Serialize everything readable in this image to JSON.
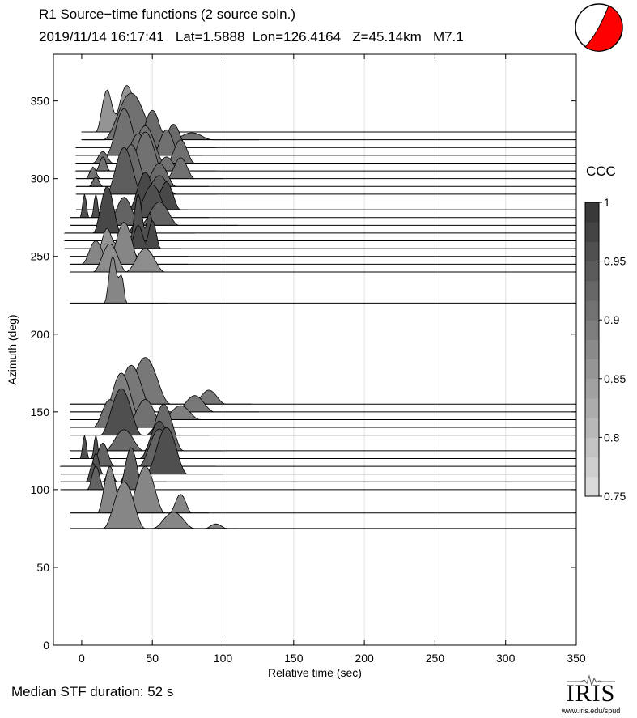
{
  "header": {
    "title": "R1 Source−time functions (2 source soln.)",
    "subtitle": "2019/11/14 16:17:41   Lat=1.5888  Lon=126.4164   Z=45.14km   M7.1"
  },
  "footer": {
    "median": "Median STF duration: 52 s",
    "logo": "IRIS",
    "url": "www.iris.edu/spud"
  },
  "colors": {
    "beachball_fill": "#ff0000",
    "ccc_low": "#e0e0e0",
    "ccc_high": "#333333"
  },
  "chart_data": {
    "type": "area",
    "xlabel": "Relative time (sec)",
    "ylabel": "Azimuth (deg)",
    "xlim": [
      -20,
      350
    ],
    "ylim": [
      0,
      380
    ],
    "xticks": [
      0,
      50,
      100,
      150,
      200,
      250,
      300,
      350
    ],
    "yticks": [
      0,
      50,
      100,
      150,
      200,
      250,
      300,
      350
    ],
    "grid": "vertical",
    "colorbar": {
      "label": "CCC",
      "ticks": [
        "0.75",
        "0.8",
        "0.85",
        "0.9",
        "0.95",
        "1"
      ],
      "range": [
        0.75,
        1.0
      ]
    },
    "traces": [
      {
        "azimuth": 330,
        "ccc": 0.86,
        "start": 0,
        "end": 80,
        "amp": 12,
        "pulses": [
          [
            18,
            8,
            0.9
          ],
          [
            32,
            12,
            1.0
          ]
        ]
      },
      {
        "azimuth": 325,
        "ccc": 0.91,
        "start": 0,
        "end": 125,
        "amp": 12,
        "pulses": [
          [
            35,
            20,
            1.0
          ],
          [
            78,
            15,
            0.15
          ]
        ]
      },
      {
        "azimuth": 320,
        "ccc": 0.92,
        "start": -4,
        "end": 95,
        "amp": 12,
        "pulses": [
          [
            50,
            12,
            0.8
          ],
          [
            65,
            10,
            0.5
          ]
        ]
      },
      {
        "azimuth": 315,
        "ccc": 0.91,
        "start": -4,
        "end": 85,
        "amp": 12,
        "pulses": [
          [
            30,
            13,
            1.0
          ],
          [
            60,
            10,
            0.55
          ]
        ]
      },
      {
        "azimuth": 310,
        "ccc": 0.91,
        "start": -4,
        "end": 95,
        "amp": 12,
        "pulses": [
          [
            15,
            7,
            0.25
          ],
          [
            45,
            14,
            0.8
          ],
          [
            70,
            10,
            0.5
          ]
        ]
      },
      {
        "azimuth": 305,
        "ccc": 0.91,
        "start": -4,
        "end": 95,
        "amp": 12,
        "pulses": [
          [
            15,
            5,
            0.3
          ],
          [
            40,
            14,
            0.8
          ],
          [
            60,
            10,
            0.3
          ]
        ]
      },
      {
        "azimuth": 300,
        "ccc": 0.91,
        "start": -4,
        "end": 100,
        "amp": 12,
        "pulses": [
          [
            8,
            5,
            0.25
          ],
          [
            45,
            15,
            1.0
          ],
          [
            70,
            10,
            0.45
          ]
        ]
      },
      {
        "azimuth": 295,
        "ccc": 0.92,
        "start": -4,
        "end": 90,
        "amp": 12,
        "pulses": [
          [
            10,
            5,
            0.2
          ],
          [
            35,
            13,
            0.9
          ],
          [
            55,
            12,
            0.5
          ]
        ]
      },
      {
        "azimuth": 290,
        "ccc": 0.94,
        "start": -4,
        "end": 95,
        "amp": 12,
        "pulses": [
          [
            30,
            13,
            1.0
          ],
          [
            55,
            12,
            0.4
          ]
        ]
      },
      {
        "azimuth": 280,
        "ccc": 0.97,
        "start": -4,
        "end": 75,
        "amp": 12,
        "pulses": [
          [
            45,
            12,
            0.8
          ],
          [
            60,
            10,
            0.6
          ]
        ]
      },
      {
        "azimuth": 275,
        "ccc": 0.96,
        "start": -8,
        "end": 90,
        "amp": 12,
        "pulses": [
          [
            2,
            3,
            0.5
          ],
          [
            10,
            3,
            0.5
          ],
          [
            50,
            14,
            0.7
          ]
        ]
      },
      {
        "azimuth": 270,
        "ccc": 0.93,
        "start": -8,
        "end": 110,
        "amp": 12,
        "pulses": [
          [
            30,
            12,
            0.6
          ],
          [
            55,
            14,
            0.5
          ]
        ]
      },
      {
        "azimuth": 265,
        "ccc": 0.97,
        "start": -12,
        "end": 80,
        "amp": 12,
        "pulses": [
          [
            18,
            10,
            1.0
          ],
          [
            40,
            8,
            0.3
          ]
        ]
      },
      {
        "azimuth": 260,
        "ccc": 0.96,
        "start": -12,
        "end": 75,
        "amp": 12,
        "pulses": [
          [
            40,
            6,
            1.0
          ],
          [
            48,
            5,
            0.6
          ]
        ]
      },
      {
        "azimuth": 255,
        "ccc": 0.97,
        "start": -12,
        "end": 70,
        "amp": 12,
        "pulses": [
          [
            40,
            7,
            0.5
          ],
          [
            50,
            6,
            0.6
          ]
        ]
      },
      {
        "azimuth": 250,
        "ccc": 0.86,
        "start": -8,
        "end": 75,
        "amp": 12,
        "pulses": [
          [
            18,
            8,
            0.6
          ],
          [
            30,
            10,
            0.55
          ]
        ]
      },
      {
        "azimuth": 245,
        "ccc": 0.88,
        "start": -8,
        "end": 75,
        "amp": 12,
        "pulses": [
          [
            10,
            10,
            0.5
          ],
          [
            30,
            12,
            0.9
          ]
        ]
      },
      {
        "azimuth": 240,
        "ccc": 0.87,
        "start": -8,
        "end": 80,
        "amp": 12,
        "pulses": [
          [
            20,
            12,
            0.6
          ],
          [
            45,
            14,
            0.5
          ]
        ]
      },
      {
        "azimuth": 220,
        "ccc": 0.88,
        "start": -8,
        "end": 60,
        "amp": 12,
        "pulses": [
          [
            22,
            6,
            1.0
          ],
          [
            28,
            4,
            0.6
          ]
        ]
      },
      {
        "azimuth": 155,
        "ccc": 0.9,
        "start": -8,
        "end": 120,
        "amp": 12,
        "pulses": [
          [
            45,
            18,
            1.0
          ],
          [
            90,
            12,
            0.3
          ]
        ]
      },
      {
        "azimuth": 150,
        "ccc": 0.9,
        "start": -8,
        "end": 125,
        "amp": 12,
        "pulses": [
          [
            35,
            16,
            1.0
          ],
          [
            80,
            14,
            0.35
          ]
        ]
      },
      {
        "azimuth": 145,
        "ccc": 0.89,
        "start": -8,
        "end": 125,
        "amp": 12,
        "pulses": [
          [
            28,
            14,
            1.0
          ],
          [
            70,
            14,
            0.3
          ]
        ]
      },
      {
        "azimuth": 140,
        "ccc": 0.91,
        "start": -8,
        "end": 100,
        "amp": 12,
        "pulses": [
          [
            20,
            12,
            0.6
          ],
          [
            45,
            14,
            0.6
          ]
        ]
      },
      {
        "azimuth": 135,
        "ccc": 0.96,
        "start": -8,
        "end": 90,
        "amp": 12,
        "pulses": [
          [
            28,
            15,
            1.0
          ],
          [
            55,
            10,
            0.25
          ]
        ]
      },
      {
        "azimuth": 125,
        "ccc": 0.92,
        "start": -8,
        "end": 100,
        "amp": 12,
        "pulses": [
          [
            30,
            14,
            0.45
          ],
          [
            58,
            14,
            1.0
          ]
        ]
      },
      {
        "azimuth": 120,
        "ccc": 0.96,
        "start": -8,
        "end": 85,
        "amp": 12,
        "pulses": [
          [
            2,
            3,
            0.5
          ],
          [
            10,
            3,
            0.5
          ],
          [
            55,
            14,
            0.8
          ]
        ]
      },
      {
        "azimuth": 115,
        "ccc": 0.93,
        "start": -15,
        "end": 95,
        "amp": 12,
        "pulses": [
          [
            15,
            8,
            0.5
          ],
          [
            55,
            15,
            0.8
          ]
        ]
      },
      {
        "azimuth": 110,
        "ccc": 0.96,
        "start": -15,
        "end": 100,
        "amp": 12,
        "pulses": [
          [
            10,
            5,
            0.45
          ],
          [
            60,
            15,
            1.0
          ]
        ]
      },
      {
        "azimuth": 105,
        "ccc": 0.96,
        "start": -15,
        "end": 60,
        "amp": 12,
        "pulses": [
          [
            8,
            5,
            0.4
          ],
          [
            20,
            5,
            0.3
          ],
          [
            35,
            8,
            0.6
          ]
        ]
      },
      {
        "azimuth": 100,
        "ccc": 0.93,
        "start": -15,
        "end": 70,
        "amp": 12,
        "pulses": [
          [
            10,
            6,
            0.5
          ],
          [
            35,
            9,
            0.9
          ]
        ]
      },
      {
        "azimuth": 85,
        "ccc": 0.88,
        "start": -8,
        "end": 90,
        "amp": 12,
        "pulses": [
          [
            20,
            9,
            1.0
          ],
          [
            45,
            14,
            1.0
          ],
          [
            70,
            8,
            0.4
          ]
        ]
      },
      {
        "azimuth": 75,
        "ccc": 0.88,
        "start": -8,
        "end": 110,
        "amp": 12,
        "pulses": [
          [
            30,
            15,
            1.0
          ],
          [
            65,
            15,
            0.35
          ],
          [
            95,
            8,
            0.1
          ]
        ]
      }
    ]
  }
}
